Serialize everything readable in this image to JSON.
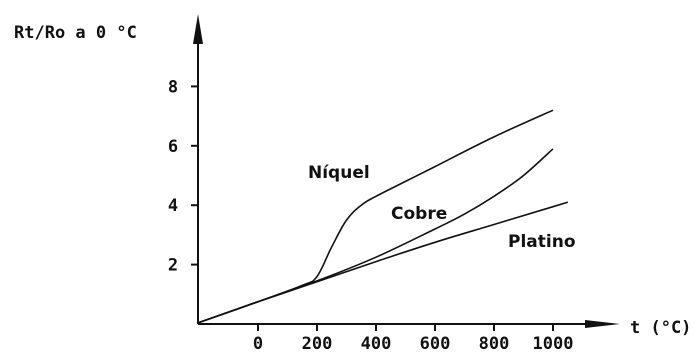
{
  "chart_data": {
    "type": "line",
    "ylabel": "Rt/Ro a 0 °C",
    "xlabel": "t (°C)",
    "x_ticks": [
      0,
      200,
      400,
      600,
      800,
      1000
    ],
    "y_ticks": [
      2,
      4,
      6,
      8
    ],
    "xlim": [
      -200,
      1100
    ],
    "ylim": [
      0,
      10
    ],
    "grid": false,
    "series": [
      {
        "name": "Níquel",
        "x": [
          -200,
          0,
          150,
          200,
          250,
          300,
          350,
          400,
          500,
          600,
          800,
          1000
        ],
        "y": [
          0.05,
          0.75,
          1.3,
          1.6,
          2.6,
          3.5,
          4.0,
          4.3,
          4.8,
          5.3,
          6.3,
          7.2
        ]
      },
      {
        "name": "Cobre",
        "x": [
          -200,
          0,
          200,
          400,
          600,
          700,
          800,
          900,
          1000
        ],
        "y": [
          0.05,
          0.75,
          1.45,
          2.25,
          3.2,
          3.7,
          4.3,
          5.0,
          5.9
        ]
      },
      {
        "name": "Platino",
        "x": [
          -200,
          0,
          200,
          400,
          600,
          800,
          1000,
          1050
        ],
        "y": [
          0.05,
          0.75,
          1.42,
          2.1,
          2.75,
          3.35,
          3.95,
          4.1
        ]
      }
    ]
  }
}
